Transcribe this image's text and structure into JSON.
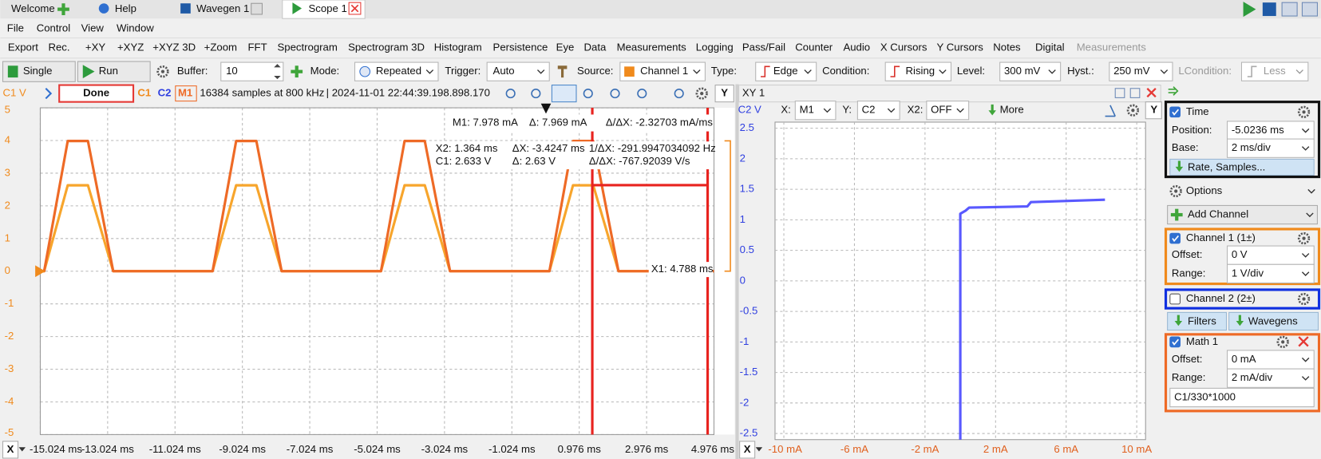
{
  "tabs": [
    "Welcome",
    "Help",
    "Wavegen 1",
    "Scope 1"
  ],
  "menu": [
    "File",
    "Control",
    "View",
    "Window"
  ],
  "toolbar": [
    "Export",
    "Rec.",
    "+XY",
    "+XYZ",
    "+XYZ 3D",
    "+Zoom",
    "FFT",
    "Spectrogram",
    "Spectrogram 3D",
    "Histogram",
    "Persistence",
    "Eye",
    "Data",
    "Measurements",
    "Logging",
    "Pass/Fail",
    "Counter",
    "Audio",
    "X Cursors",
    "Y Cursors",
    "Notes",
    "Digital",
    "Measurements"
  ],
  "controls": {
    "single": "Single",
    "run": "Run",
    "buffer_label": "Buffer:",
    "buffer": "10",
    "mode_label": "Mode:",
    "mode": "Repeated",
    "trigger_label": "Trigger:",
    "trigger": "Auto",
    "source_label": "Source:",
    "source": "Channel 1",
    "type_label": "Type:",
    "type": "Edge",
    "condition_label": "Condition:",
    "condition": "Rising",
    "level_label": "Level:",
    "level": "300 mV",
    "hyst_label": "Hyst.:",
    "hyst": "250 mV",
    "lcondition_label": "LCondition:",
    "lcondition": "Less"
  },
  "scope": {
    "axis_label": "C1 V",
    "status": "Done",
    "channels": [
      "C1",
      "C2",
      "M1"
    ],
    "info": "16384 samples at 800 kHz",
    "timestamp": "| 2024-11-01 22:44:39.198.898.170",
    "y_button": "Y",
    "x_button": "X",
    "cursors": {
      "m1": {
        "value": 7.978,
        "label": "M1: 7.978 mA"
      },
      "m1_delta": "Δ: 7.969 mA",
      "m1_slope": "Δ/ΔX: -2.32703 mA/ms",
      "x2": {
        "value": 1.364,
        "label": "X2: 1.364 ms"
      },
      "dx": "ΔX: -3.4247 ms",
      "inv_dx": "1/ΔX: -291.9947034092 Hz",
      "c1": {
        "value": 2.633,
        "label": "C1: 2.633 V"
      },
      "c1_delta": "Δ: 2.63 V",
      "c1_slope": "Δ/ΔX: -767.92039 V/s",
      "x1": {
        "value": 4.788,
        "label": "X1: 4.788 ms"
      }
    },
    "chart_data": {
      "type": "line",
      "grid": true,
      "xlim": [
        -15.024,
        4.976
      ],
      "ylim": [
        -5,
        5
      ],
      "yticks": [
        5,
        4,
        3,
        2,
        1,
        0,
        -1,
        -2,
        -3,
        -4,
        -5
      ],
      "xticks": [
        {
          "value": -15.024,
          "label": "-15.024 ms"
        },
        {
          "value": -13.024,
          "label": "-13.024 ms"
        },
        {
          "value": -11.024,
          "label": "-11.024 ms"
        },
        {
          "value": -9.024,
          "label": "-9.024 ms"
        },
        {
          "value": -7.024,
          "label": "-7.024 ms"
        },
        {
          "value": -5.024,
          "label": "-5.024 ms"
        },
        {
          "value": -3.024,
          "label": "-3.024 ms"
        },
        {
          "value": -1.024,
          "label": "-1.024 ms"
        },
        {
          "value": 0.976,
          "label": "0.976 ms"
        },
        {
          "value": 2.976,
          "label": "2.976 ms"
        },
        {
          "value": 4.976,
          "label": "4.976 ms"
        }
      ],
      "x": [
        -15.024,
        -14.91,
        -14.21,
        -13.61,
        -12.86,
        -9.91,
        -9.21,
        -8.61,
        -7.86,
        -4.91,
        -4.21,
        -3.61,
        -2.86,
        0.09,
        0.79,
        1.39,
        2.14,
        4.976
      ],
      "series": [
        {
          "color": "#f7a52c",
          "values": [
            0,
            0,
            2.63,
            2.63,
            0,
            0,
            2.63,
            2.63,
            0,
            0,
            2.63,
            2.63,
            0,
            0,
            2.63,
            2.63,
            0,
            0
          ]
        },
        {
          "color": "#ee6a26",
          "values": [
            0,
            0,
            7.97,
            7.97,
            0,
            0,
            7.97,
            7.97,
            0,
            0,
            7.97,
            7.97,
            0,
            0,
            7.97,
            7.97,
            0,
            0
          ]
        }
      ]
    }
  },
  "xy": {
    "title": "XY 1",
    "x_label": "X:",
    "x_source": "M1",
    "y_label": "Y:",
    "y_source": "C2",
    "x2_label": "X2:",
    "x2": "OFF",
    "more": "More",
    "axis_label": "C2 V",
    "y_button": "Y",
    "x_button": "X",
    "chart_data": {
      "type": "line",
      "grid": true,
      "xlim": [
        -10.5,
        10.5
      ],
      "ylim": [
        -2.6,
        2.6
      ],
      "xticks": [
        {
          "value": -10,
          "label": "-10 mA"
        },
        {
          "value": -6,
          "label": "-6 mA"
        },
        {
          "value": -2,
          "label": "-2 mA"
        },
        {
          "value": 2,
          "label": "2 mA"
        },
        {
          "value": 6,
          "label": "6 mA"
        },
        {
          "value": 10,
          "label": "10 mA"
        }
      ],
      "yticks": [
        2.5,
        2,
        1.5,
        1,
        0.5,
        0,
        -0.5,
        -1,
        -1.5,
        -2,
        -2.5
      ],
      "x": [
        0,
        0,
        0.3,
        0.5,
        3.8,
        4.0,
        8.2
      ],
      "series": [
        {
          "color": "#3c3cff",
          "values": [
            -2.6,
            1.1,
            1.15,
            1.2,
            1.22,
            1.29,
            1.33
          ]
        }
      ]
    }
  },
  "panel": {
    "time": {
      "title": "Time",
      "position_label": "Position:",
      "position": "-5.0236 ms",
      "base_label": "Base:",
      "base": "2 ms/div",
      "rate": "Rate, Samples..."
    },
    "options": "Options",
    "add_channel": "Add Channel",
    "channel1": {
      "title": "Channel 1 (1±)",
      "offset_label": "Offset:",
      "offset": "0 V",
      "range_label": "Range:",
      "range": {
        "value": 1,
        "label": "1 V/div"
      }
    },
    "channel2": {
      "title": "Channel 2 (2±)"
    },
    "filters": "Filters",
    "wavegens": "Wavegens",
    "math1": {
      "title": "Math 1",
      "offset_label": "Offset:",
      "offset": "0 mA",
      "range_label": "Range:",
      "range": {
        "value": 2,
        "label": "2 mA/div"
      },
      "formula": "C1/330*1000"
    }
  }
}
